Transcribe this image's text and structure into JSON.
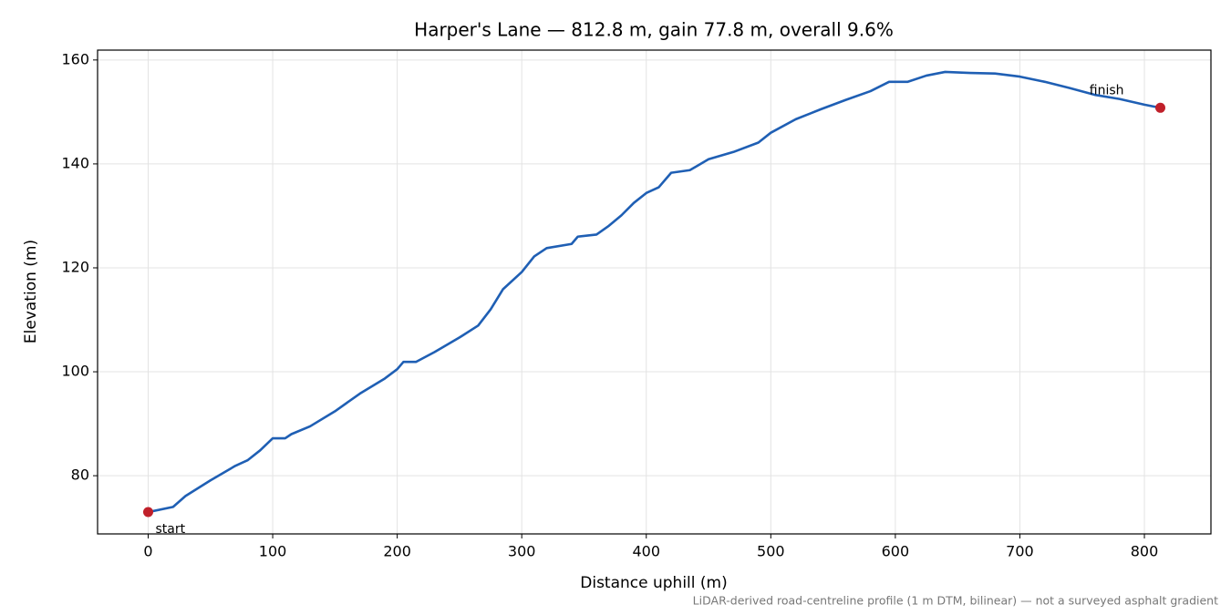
{
  "chart_data": {
    "type": "line",
    "title": "Harper's Lane — 812.8 m, gain 77.8 m, overall 9.6%",
    "x_label": "Distance uphill (m)",
    "y_label": "Elevation (m)",
    "footnote": "LiDAR-derived road-centreline profile (1 m DTM, bilinear) — not a surveyed asphalt gradient",
    "x": [
      0,
      20,
      30,
      50,
      70,
      80,
      90,
      100,
      110,
      115,
      130,
      150,
      170,
      190,
      200,
      205,
      215,
      230,
      250,
      265,
      275,
      285,
      300,
      310,
      320,
      340,
      345,
      360,
      370,
      380,
      390,
      400,
      410,
      420,
      435,
      450,
      470,
      490,
      500,
      520,
      540,
      560,
      580,
      595,
      610,
      625,
      640,
      660,
      680,
      700,
      720,
      740,
      760,
      780,
      800,
      812.8
    ],
    "series": [
      {
        "color": "#1f5fb4",
        "values": [
          73.0,
          74.0,
          76.1,
          79.1,
          81.9,
          83.0,
          84.9,
          87.2,
          87.2,
          88.0,
          89.5,
          92.4,
          95.8,
          98.7,
          100.5,
          101.9,
          101.9,
          103.8,
          106.6,
          108.9,
          112.0,
          115.9,
          119.2,
          122.2,
          123.8,
          124.6,
          126.0,
          126.4,
          128.1,
          130.1,
          132.5,
          134.4,
          135.5,
          138.3,
          138.8,
          140.9,
          142.3,
          144.1,
          146.0,
          148.6,
          150.5,
          152.3,
          154.0,
          155.8,
          155.8,
          157.0,
          157.7,
          157.5,
          157.4,
          156.8,
          155.8,
          154.6,
          153.3,
          152.5,
          151.4,
          150.8
        ]
      }
    ],
    "annotations": [
      {
        "text": "start",
        "x": 0,
        "y": 73.0,
        "color": "#c0202a"
      },
      {
        "text": "finish",
        "x": 812.8,
        "y": 150.8,
        "color": "#c0202a"
      }
    ],
    "xlim": [
      -40.64,
      853.44
    ],
    "ylim": [
      68.8,
      161.9
    ],
    "xticks": [
      0,
      100,
      200,
      300,
      400,
      500,
      600,
      700,
      800
    ],
    "yticks": [
      80,
      100,
      120,
      140,
      160
    ],
    "grid": true
  }
}
